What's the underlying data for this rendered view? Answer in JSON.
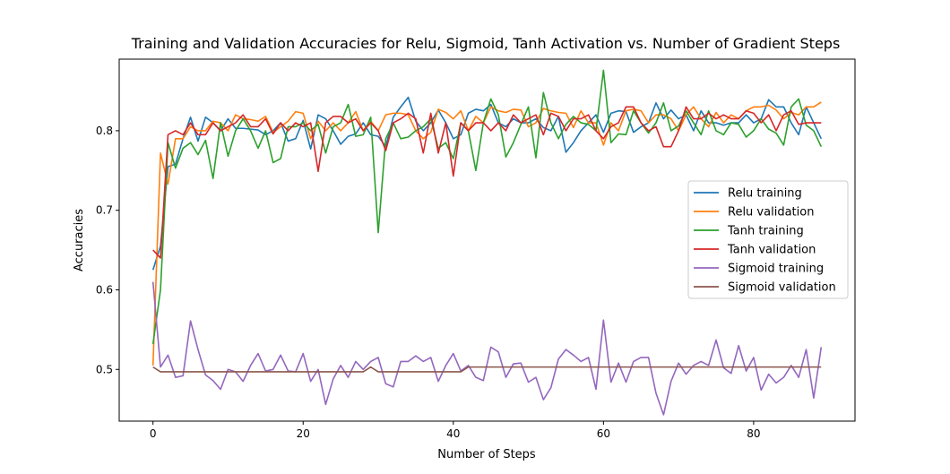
{
  "chart_data": {
    "type": "line",
    "title": "Training and Validation Accuracies for Relu, Sigmoid, Tanh Activation vs. Number of Gradient Steps",
    "xlabel": "Number of Steps",
    "ylabel": "Accuracies",
    "xlim": [
      -4.5,
      93.5
    ],
    "ylim": [
      0.435,
      0.89
    ],
    "xticks": [
      0,
      20,
      40,
      60,
      80
    ],
    "yticks": [
      0.5,
      0.6,
      0.7,
      0.8
    ],
    "xtick_labels": [
      "0",
      "20",
      "40",
      "60",
      "80"
    ],
    "ytick_labels": [
      "0.5",
      "0.6",
      "0.7",
      "0.8"
    ],
    "grid": false,
    "legend": "center-right",
    "x_start": 0,
    "x_end": 89,
    "series": [
      {
        "name": "Relu training",
        "color": "#1f77b4",
        "values": [
          0.625,
          0.655,
          0.755,
          0.758,
          0.79,
          0.817,
          0.787,
          0.817,
          0.81,
          0.8,
          0.815,
          0.803,
          0.803,
          0.802,
          0.801,
          0.795,
          0.8,
          0.81,
          0.787,
          0.79,
          0.813,
          0.777,
          0.82,
          0.815,
          0.8,
          0.783,
          0.793,
          0.796,
          0.81,
          0.795,
          0.793,
          0.78,
          0.817,
          0.83,
          0.842,
          0.812,
          0.8,
          0.81,
          0.826,
          0.81,
          0.79,
          0.795,
          0.822,
          0.827,
          0.825,
          0.833,
          0.81,
          0.805,
          0.815,
          0.81,
          0.81,
          0.815,
          0.804,
          0.8,
          0.818,
          0.773,
          0.785,
          0.8,
          0.81,
          0.82,
          0.798,
          0.822,
          0.825,
          0.824,
          0.798,
          0.805,
          0.81,
          0.835,
          0.815,
          0.826,
          0.815,
          0.82,
          0.8,
          0.825,
          0.81,
          0.81,
          0.807,
          0.81,
          0.81,
          0.82,
          0.81,
          0.815,
          0.839,
          0.83,
          0.83,
          0.81,
          0.795,
          0.83,
          0.81,
          0.79
        ]
      },
      {
        "name": "Relu validation",
        "color": "#ff7f0e",
        "values": [
          0.505,
          0.772,
          0.733,
          0.79,
          0.79,
          0.805,
          0.8,
          0.8,
          0.812,
          0.81,
          0.8,
          0.82,
          0.815,
          0.814,
          0.812,
          0.818,
          0.798,
          0.805,
          0.812,
          0.824,
          0.822,
          0.79,
          0.812,
          0.8,
          0.81,
          0.8,
          0.81,
          0.824,
          0.8,
          0.812,
          0.8,
          0.82,
          0.822,
          0.822,
          0.82,
          0.8,
          0.79,
          0.798,
          0.827,
          0.823,
          0.815,
          0.825,
          0.8,
          0.818,
          0.81,
          0.83,
          0.825,
          0.823,
          0.827,
          0.826,
          0.805,
          0.81,
          0.828,
          0.825,
          0.823,
          0.822,
          0.804,
          0.825,
          0.81,
          0.81,
          0.782,
          0.81,
          0.8,
          0.825,
          0.827,
          0.825,
          0.81,
          0.82,
          0.82,
          0.815,
          0.8,
          0.82,
          0.83,
          0.815,
          0.805,
          0.823,
          0.81,
          0.82,
          0.815,
          0.825,
          0.83,
          0.83,
          0.832,
          0.826,
          0.815,
          0.823,
          0.82,
          0.83,
          0.83,
          0.836
        ]
      },
      {
        "name": "Tanh training",
        "color": "#2ca02c",
        "values": [
          0.532,
          0.6,
          0.785,
          0.753,
          0.778,
          0.785,
          0.77,
          0.788,
          0.74,
          0.81,
          0.768,
          0.8,
          0.815,
          0.8,
          0.778,
          0.8,
          0.76,
          0.765,
          0.805,
          0.805,
          0.81,
          0.8,
          0.808,
          0.772,
          0.805,
          0.81,
          0.833,
          0.793,
          0.795,
          0.817,
          0.672,
          0.79,
          0.81,
          0.79,
          0.792,
          0.8,
          0.805,
          0.815,
          0.778,
          0.785,
          0.765,
          0.81,
          0.8,
          0.75,
          0.81,
          0.84,
          0.82,
          0.767,
          0.785,
          0.808,
          0.83,
          0.766,
          0.848,
          0.81,
          0.79,
          0.808,
          0.818,
          0.81,
          0.808,
          0.8,
          0.876,
          0.785,
          0.796,
          0.795,
          0.825,
          0.81,
          0.797,
          0.81,
          0.835,
          0.8,
          0.806,
          0.825,
          0.81,
          0.795,
          0.825,
          0.8,
          0.795,
          0.81,
          0.808,
          0.792,
          0.8,
          0.815,
          0.802,
          0.797,
          0.782,
          0.83,
          0.84,
          0.807,
          0.8,
          0.78
        ]
      },
      {
        "name": "Tanh validation",
        "color": "#d62728",
        "values": [
          0.65,
          0.64,
          0.795,
          0.8,
          0.795,
          0.81,
          0.795,
          0.795,
          0.81,
          0.8,
          0.805,
          0.81,
          0.82,
          0.805,
          0.805,
          0.815,
          0.796,
          0.81,
          0.8,
          0.81,
          0.805,
          0.81,
          0.749,
          0.81,
          0.818,
          0.818,
          0.81,
          0.815,
          0.8,
          0.81,
          0.8,
          0.775,
          0.81,
          0.815,
          0.822,
          0.815,
          0.772,
          0.822,
          0.772,
          0.81,
          0.743,
          0.81,
          0.8,
          0.81,
          0.81,
          0.8,
          0.81,
          0.8,
          0.82,
          0.81,
          0.815,
          0.82,
          0.795,
          0.822,
          0.818,
          0.8,
          0.815,
          0.815,
          0.82,
          0.8,
          0.79,
          0.805,
          0.81,
          0.83,
          0.83,
          0.81,
          0.8,
          0.805,
          0.78,
          0.78,
          0.8,
          0.83,
          0.815,
          0.815,
          0.822,
          0.815,
          0.82,
          0.815,
          0.815,
          0.825,
          0.822,
          0.81,
          0.82,
          0.8,
          0.82,
          0.825,
          0.808,
          0.81,
          0.81,
          0.81
        ]
      },
      {
        "name": "Sigmoid training",
        "color": "#9467bd",
        "values": [
          0.61,
          0.503,
          0.518,
          0.49,
          0.492,
          0.561,
          0.525,
          0.493,
          0.486,
          0.475,
          0.5,
          0.497,
          0.485,
          0.505,
          0.52,
          0.498,
          0.5,
          0.518,
          0.498,
          0.497,
          0.52,
          0.485,
          0.5,
          0.456,
          0.488,
          0.505,
          0.49,
          0.51,
          0.5,
          0.51,
          0.515,
          0.482,
          0.478,
          0.51,
          0.51,
          0.517,
          0.51,
          0.515,
          0.485,
          0.505,
          0.52,
          0.498,
          0.505,
          0.49,
          0.486,
          0.528,
          0.522,
          0.49,
          0.507,
          0.508,
          0.484,
          0.49,
          0.462,
          0.477,
          0.513,
          0.525,
          0.518,
          0.51,
          0.515,
          0.475,
          0.562,
          0.484,
          0.508,
          0.484,
          0.51,
          0.515,
          0.515,
          0.47,
          0.443,
          0.485,
          0.508,
          0.494,
          0.505,
          0.51,
          0.505,
          0.537,
          0.502,
          0.495,
          0.53,
          0.498,
          0.515,
          0.474,
          0.494,
          0.483,
          0.49,
          0.505,
          0.49,
          0.525,
          0.464,
          0.528
        ]
      },
      {
        "name": "Sigmoid validation",
        "color": "#8c564b",
        "values": [
          0.503,
          0.497,
          0.497,
          0.497,
          0.497,
          0.497,
          0.497,
          0.497,
          0.497,
          0.497,
          0.497,
          0.497,
          0.497,
          0.497,
          0.497,
          0.497,
          0.497,
          0.497,
          0.497,
          0.497,
          0.497,
          0.497,
          0.497,
          0.497,
          0.497,
          0.497,
          0.497,
          0.497,
          0.497,
          0.503,
          0.497,
          0.497,
          0.497,
          0.497,
          0.497,
          0.497,
          0.497,
          0.497,
          0.497,
          0.497,
          0.497,
          0.497,
          0.503,
          0.503,
          0.503,
          0.503,
          0.503,
          0.503,
          0.503,
          0.503,
          0.503,
          0.503,
          0.503,
          0.503,
          0.503,
          0.503,
          0.503,
          0.503,
          0.503,
          0.503,
          0.503,
          0.503,
          0.503,
          0.503,
          0.503,
          0.503,
          0.503,
          0.503,
          0.503,
          0.503,
          0.503,
          0.503,
          0.503,
          0.503,
          0.503,
          0.503,
          0.503,
          0.503,
          0.503,
          0.503,
          0.503,
          0.503,
          0.503,
          0.503,
          0.503,
          0.503,
          0.503,
          0.503,
          0.503,
          0.503
        ]
      }
    ]
  }
}
